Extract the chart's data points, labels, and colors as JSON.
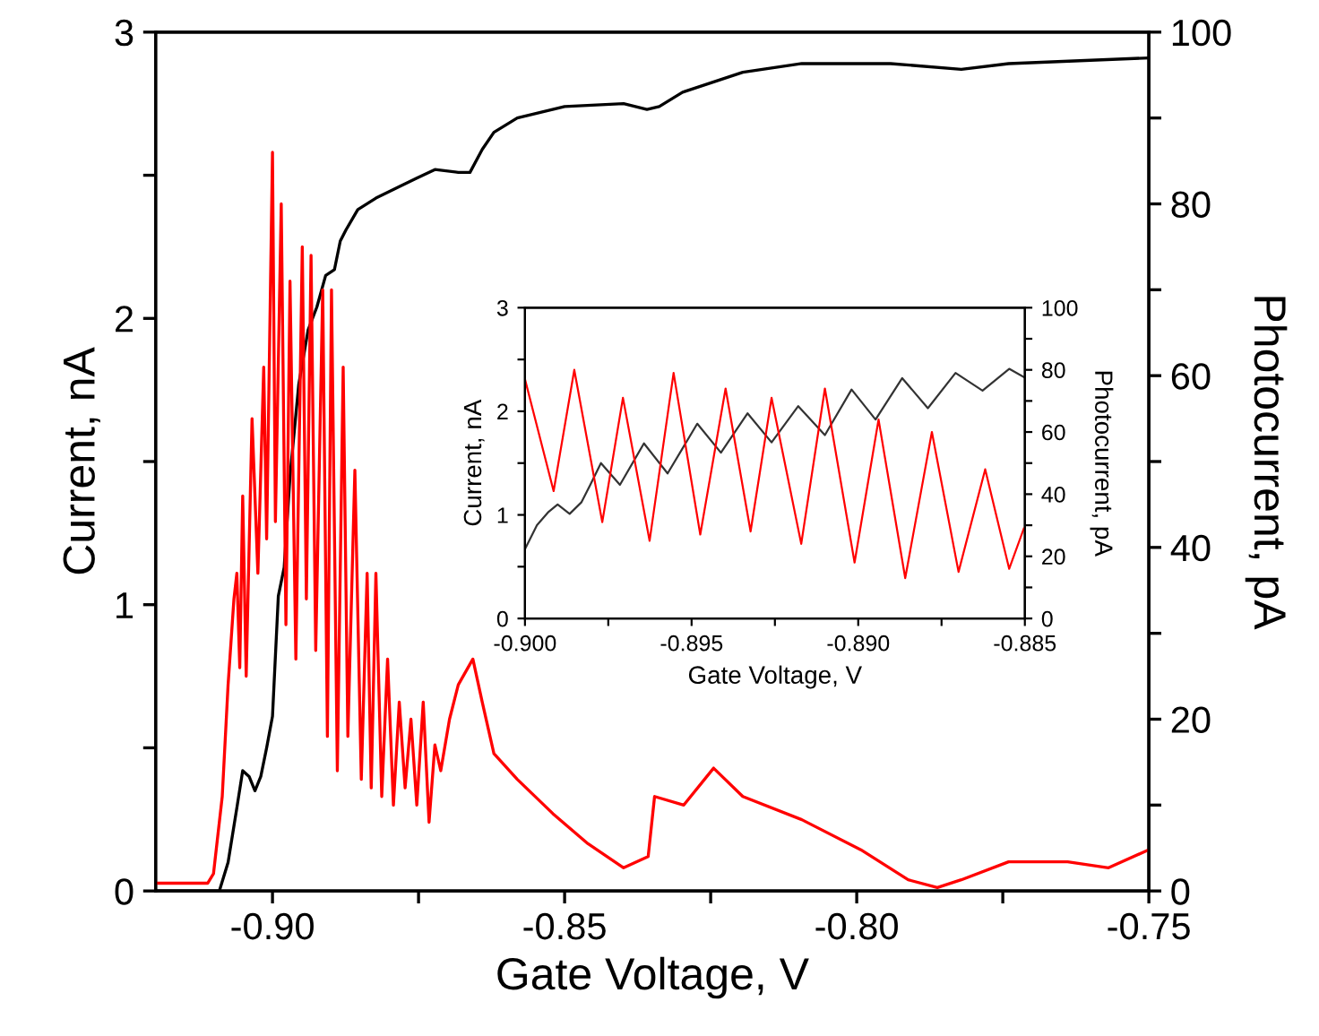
{
  "chart_data": [
    {
      "type": "line",
      "xlabel": "Gate Voltage, V",
      "ylabel": "Current, nA",
      "y2label": "Photocurrent, pA",
      "xlim": [
        -0.92,
        -0.75
      ],
      "xticks": [
        {
          "value": -0.9,
          "label": "-0.90"
        },
        {
          "value": -0.875,
          "label": null
        },
        {
          "value": -0.85,
          "label": "-0.85"
        },
        {
          "value": -0.825,
          "label": null
        },
        {
          "value": -0.8,
          "label": "-0.80"
        },
        {
          "value": -0.775,
          "label": null
        },
        {
          "value": -0.75,
          "label": "-0.75"
        }
      ],
      "ylim": [
        0,
        3
      ],
      "yticks": [
        0,
        {
          "value": 0.5,
          "label": null
        },
        1,
        {
          "value": 1.5,
          "label": null
        },
        2,
        {
          "value": 2.5,
          "label": null
        },
        3
      ],
      "y2lim": [
        0,
        100
      ],
      "y2ticks": [
        0,
        {
          "value": 10,
          "label": null
        },
        20,
        {
          "value": 30,
          "label": null
        },
        40,
        {
          "value": 50,
          "label": null
        },
        60,
        {
          "value": 70,
          "label": null
        },
        80,
        {
          "value": 90,
          "label": null
        },
        100
      ],
      "series": [
        {
          "color": "#000000",
          "x": [
            -0.9197,
            -0.9106,
            -0.9091,
            -0.9076,
            -0.9061,
            -0.9051,
            -0.904,
            -0.903,
            -0.902,
            -0.901,
            -0.9,
            -0.899,
            -0.898,
            -0.897,
            -0.8955,
            -0.8939,
            -0.8924,
            -0.8909,
            -0.8894,
            -0.8884,
            -0.8874,
            -0.8854,
            -0.8823,
            -0.8783,
            -0.8753,
            -0.8722,
            -0.8682,
            -0.8662,
            -0.8641,
            -0.8621,
            -0.8581,
            -0.85,
            -0.8399,
            -0.8359,
            -0.8338,
            -0.8298,
            -0.8195,
            -0.8094,
            -0.7942,
            -0.7821,
            -0.774,
            -0.75
          ],
          "values": [
            0,
            0,
            0,
            0.1,
            0.29,
            0.42,
            0.4,
            0.35,
            0.4,
            0.5,
            0.61,
            1.03,
            1.13,
            1.45,
            1.77,
            1.96,
            2.04,
            2.15,
            2.17,
            2.27,
            2.31,
            2.38,
            2.42,
            2.46,
            2.49,
            2.52,
            2.51,
            2.51,
            2.59,
            2.65,
            2.7,
            2.74,
            2.75,
            2.73,
            2.74,
            2.79,
            2.86,
            2.89,
            2.89,
            2.87,
            2.89,
            2.91
          ]
        },
        {
          "axis": "y2",
          "color": "#ff0000",
          "x": [
            -0.9197,
            -0.9111,
            -0.9101,
            -0.9086,
            -0.9076,
            -0.9066,
            -0.9061,
            -0.9056,
            -0.9051,
            -0.9045,
            -0.9035,
            -0.9025,
            -0.9015,
            -0.901,
            -0.9,
            -0.8995,
            -0.8985,
            -0.8977,
            -0.897,
            -0.896,
            -0.8949,
            -0.8942,
            -0.8934,
            -0.8926,
            -0.8914,
            -0.8906,
            -0.8899,
            -0.8889,
            -0.8879,
            -0.8871,
            -0.8859,
            -0.8848,
            -0.8838,
            -0.8831,
            -0.8823,
            -0.8813,
            -0.8803,
            -0.8793,
            -0.8783,
            -0.8773,
            -0.8763,
            -0.8753,
            -0.8742,
            -0.8732,
            -0.8722,
            -0.8712,
            -0.8697,
            -0.8682,
            -0.8657,
            -0.8641,
            -0.8621,
            -0.8581,
            -0.852,
            -0.846,
            -0.8399,
            -0.8357,
            -0.8346,
            -0.8296,
            -0.8245,
            -0.8195,
            -0.8094,
            -0.7993,
            -0.7912,
            -0.7862,
            -0.7821,
            -0.774,
            -0.7639,
            -0.7569,
            -0.75
          ],
          "values": [
            0.9,
            0.9,
            2,
            11,
            24,
            34,
            37,
            26,
            46,
            25,
            55,
            37,
            61,
            41,
            86,
            43,
            80,
            31,
            71,
            27,
            75,
            34,
            74,
            28,
            70,
            18,
            70,
            14,
            61,
            18,
            49,
            13,
            37,
            12,
            37,
            11,
            27,
            10,
            22,
            12,
            20,
            10,
            22,
            8,
            17,
            14,
            20,
            24,
            27,
            22,
            16,
            13,
            9,
            5.5,
            2.7,
            4,
            11,
            10,
            14.3,
            11,
            8.3,
            4.8,
            1.3,
            0.4,
            1.3,
            3.4,
            3.4,
            2.7,
            4.8
          ]
        }
      ]
    },
    {
      "type": "line",
      "xlabel": "Gate Voltage, V",
      "ylabel": "Current, nA",
      "y2label": "Photocurrent, pA",
      "xlim": [
        -0.9,
        -0.885
      ],
      "xticks": [
        {
          "value": -0.9,
          "label": "-0.900"
        },
        {
          "value": -0.8975,
          "label": null
        },
        {
          "value": -0.895,
          "label": "-0.895"
        },
        {
          "value": -0.8925,
          "label": null
        },
        {
          "value": -0.89,
          "label": "-0.890"
        },
        {
          "value": -0.8875,
          "label": null
        },
        {
          "value": -0.885,
          "label": "-0.885"
        }
      ],
      "ylim": [
        0,
        3
      ],
      "yticks": [
        0,
        {
          "value": 0.5,
          "label": null
        },
        1,
        {
          "value": 1.5,
          "label": null
        },
        2,
        {
          "value": 2.5,
          "label": null
        },
        3
      ],
      "y2lim": [
        0,
        100
      ],
      "y2ticks": [
        0,
        {
          "value": 10,
          "label": null
        },
        20,
        {
          "value": 30,
          "label": null
        },
        40,
        {
          "value": 50,
          "label": null
        },
        60,
        {
          "value": 70,
          "label": null
        },
        80,
        {
          "value": 90,
          "label": null
        },
        100
      ],
      "series": [
        {
          "color": "#333333",
          "x": [
            -0.9,
            -0.89964,
            -0.89929,
            -0.89902,
            -0.89866,
            -0.89831,
            -0.89804,
            -0.89772,
            -0.89715,
            -0.89643,
            -0.89572,
            -0.89483,
            -0.89412,
            -0.89332,
            -0.8926,
            -0.8918,
            -0.891,
            -0.8902,
            -0.88948,
            -0.88868,
            -0.88791,
            -0.88708,
            -0.88627,
            -0.88547,
            -0.88503
          ],
          "values": [
            0.67,
            0.9,
            1.03,
            1.1,
            1.01,
            1.12,
            1.29,
            1.5,
            1.29,
            1.69,
            1.4,
            1.88,
            1.6,
            1.98,
            1.7,
            2.05,
            1.77,
            2.21,
            1.92,
            2.32,
            2.03,
            2.37,
            2.2,
            2.41,
            2.33
          ]
        },
        {
          "axis": "y2",
          "color": "#ff0000",
          "x": [
            -0.9,
            -0.89914,
            -0.89852,
            -0.89768,
            -0.89706,
            -0.89626,
            -0.89554,
            -0.89474,
            -0.89398,
            -0.89323,
            -0.8926,
            -0.89171,
            -0.891,
            -0.89011,
            -0.88939,
            -0.88859,
            -0.88779,
            -0.88699,
            -0.88619,
            -0.88547,
            -0.88503
          ],
          "values": [
            77,
            41,
            80,
            31,
            71,
            25,
            79,
            27,
            74,
            28,
            71,
            24,
            74,
            18,
            64,
            13,
            60,
            15,
            48,
            16,
            29
          ]
        }
      ]
    }
  ]
}
